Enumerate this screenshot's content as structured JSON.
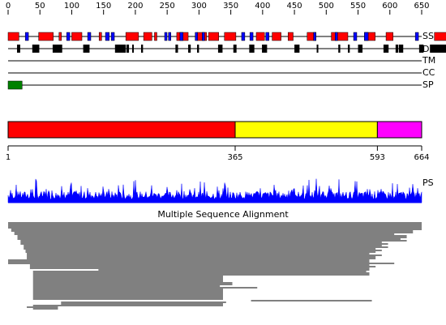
{
  "scale": {
    "min": 0,
    "max": 650,
    "ticks": [
      "0",
      "50",
      "100",
      "150",
      "200",
      "250",
      "300",
      "350",
      "400",
      "450",
      "500",
      "550",
      "600",
      "650"
    ]
  },
  "tracks": {
    "ss": {
      "label": "SS",
      "helix_color": "#ff0000",
      "strand_color": "#0000ff",
      "helices": [
        [
          0,
          17
        ],
        [
          48,
          71
        ],
        [
          80,
          83
        ],
        [
          100,
          116
        ],
        [
          143,
          147
        ],
        [
          185,
          205
        ],
        [
          213,
          226
        ],
        [
          230,
          230
        ],
        [
          265,
          283
        ],
        [
          297,
          312
        ],
        [
          315,
          331
        ],
        [
          340,
          358
        ],
        [
          390,
          403
        ],
        [
          415,
          429
        ],
        [
          440,
          448
        ],
        [
          470,
          484
        ],
        [
          508,
          534
        ],
        [
          560,
          577
        ],
        [
          594,
          605
        ],
        [
          670,
          690
        ]
      ],
      "strands": [
        [
          27,
          32
        ],
        [
          92,
          97
        ],
        [
          125,
          130
        ],
        [
          153,
          159
        ],
        [
          162,
          167
        ],
        [
          246,
          249
        ],
        [
          252,
          255
        ],
        [
          270,
          275
        ],
        [
          294,
          297
        ],
        [
          305,
          308
        ],
        [
          367,
          372
        ],
        [
          380,
          385
        ],
        [
          405,
          410
        ],
        [
          480,
          483
        ],
        [
          514,
          516
        ],
        [
          543,
          548
        ],
        [
          560,
          566
        ],
        [
          640,
          645
        ]
      ]
    },
    "d": {
      "label": "D",
      "color": "#000000",
      "blocks": [
        [
          14,
          19
        ],
        [
          38,
          49
        ],
        [
          70,
          85
        ],
        [
          118,
          128
        ],
        [
          168,
          185
        ],
        [
          186,
          190
        ],
        [
          195,
          197
        ],
        [
          209,
          212
        ],
        [
          263,
          267
        ],
        [
          283,
          287
        ],
        [
          297,
          300
        ],
        [
          330,
          337
        ],
        [
          354,
          359
        ],
        [
          379,
          387
        ],
        [
          399,
          407
        ],
        [
          450,
          458
        ],
        [
          485,
          487
        ],
        [
          519,
          522
        ],
        [
          534,
          537
        ],
        [
          550,
          557
        ],
        [
          590,
          598
        ],
        [
          609,
          613
        ],
        [
          614,
          621
        ],
        [
          646,
          653
        ],
        [
          663,
          693
        ]
      ]
    },
    "tm": {
      "label": "TM"
    },
    "cc": {
      "label": "CC"
    },
    "sp": {
      "label": "SP",
      "color": "#008000",
      "blocks": [
        [
          0,
          22
        ]
      ]
    }
  },
  "domains": {
    "segments": [
      {
        "start": 1,
        "end": 365,
        "color": "#ff0000"
      },
      {
        "start": 365,
        "end": 593,
        "color": "#ffff00"
      },
      {
        "start": 593,
        "end": 664,
        "color": "#ff00ff"
      }
    ],
    "boundary_labels": [
      "1",
      "365",
      "593",
      "664"
    ]
  },
  "ps": {
    "label": "PS",
    "color": "#0000ff"
  },
  "msa": {
    "title": "Multiple Sequence Alignment",
    "rows": [
      [
        0,
        664
      ],
      [
        0,
        664
      ],
      [
        0,
        664
      ],
      [
        0,
        664
      ],
      [
        5,
        664
      ],
      [
        5,
        650
      ],
      [
        10,
        650
      ],
      [
        10,
        620
      ],
      [
        15,
        640
      ],
      [
        15,
        640
      ],
      [
        15,
        630
      ],
      [
        20,
        640
      ],
      [
        20,
        600
      ],
      [
        20,
        610
      ],
      [
        25,
        600
      ],
      [
        25,
        610
      ],
      [
        25,
        590
      ],
      [
        28,
        600
      ],
      [
        28,
        590
      ],
      [
        30,
        580
      ],
      [
        30,
        600
      ],
      [
        30,
        590
      ],
      [
        30,
        590
      ],
      [
        0,
        580
      ],
      [
        0,
        580
      ],
      [
        0,
        620
      ],
      [
        35,
        580
      ],
      [
        35,
        590
      ],
      [
        35,
        580
      ],
      [
        145,
        580
      ],
      [
        40,
        575
      ],
      [
        40,
        580
      ],
      [
        40,
        580
      ],
      [
        40,
        345
      ],
      [
        40,
        345
      ],
      [
        40,
        345
      ],
      [
        40,
        345
      ],
      [
        40,
        360
      ],
      [
        40,
        360
      ],
      [
        40,
        340
      ],
      [
        40,
        400
      ],
      [
        40,
        345
      ],
      [
        40,
        345
      ],
      [
        40,
        345
      ],
      [
        40,
        345
      ],
      [
        40,
        345
      ],
      [
        40,
        345
      ],
      [
        40,
        345
      ],
      [
        390,
        584
      ],
      [
        85,
        350
      ],
      [
        85,
        345
      ],
      [
        40,
        345
      ],
      [
        30,
        80
      ],
      [
        40,
        80
      ]
    ]
  }
}
